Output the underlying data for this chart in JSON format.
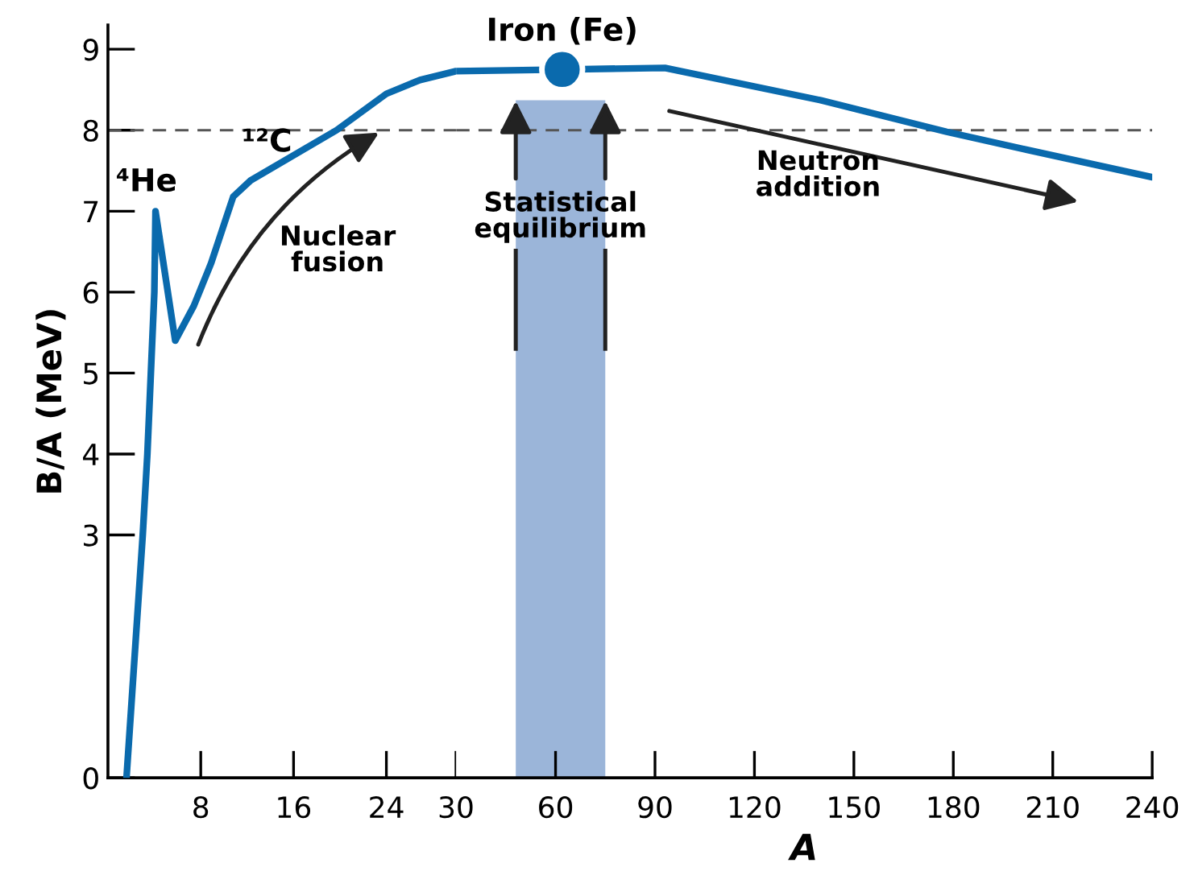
{
  "chart_data": [
    {
      "type": "line",
      "ylabel": "B/A (MeV)",
      "series": [
        {
          "color": "#0a6aad",
          "x": [
            1.6,
            3.0,
            3.4,
            3.7,
            4.0,
            4.1,
            5.8,
            7.4,
            8.9,
            10.8,
            12.3,
            19.7,
            24,
            26.9,
            30
          ],
          "values": [
            0,
            3,
            4,
            5,
            6,
            7,
            5.4,
            5.83,
            6.36,
            7.18,
            7.38,
            8.0,
            8.45,
            8.62,
            8.73
          ]
        }
      ],
      "xlim": [
        0,
        30
      ],
      "xticks": [
        8,
        16,
        24,
        30
      ],
      "ylim": [
        0,
        9.3
      ],
      "yticks": [
        0,
        3,
        4,
        5,
        6,
        7,
        8,
        9
      ],
      "ref_lines": [
        {
          "axis": "y",
          "value": 8,
          "color": "#555555",
          "line_style": "dashed"
        }
      ],
      "annotations": [
        {
          "text": "⁴He",
          "x": 4.1,
          "y": 7
        },
        {
          "text": "¹²C",
          "x": 12.3,
          "y": 7.38
        },
        "Nuclear\nfusion"
      ]
    },
    {
      "type": "line",
      "xlabel": "A",
      "series": [
        {
          "color": "#0a6aad",
          "x": [
            30,
            62,
            93,
            140,
            178,
            202,
            240
          ],
          "values": [
            8.73,
            8.75,
            8.77,
            8.37,
            7.98,
            7.76,
            7.42
          ]
        },
        {
          "type": "scatter",
          "color": "#0a6aad",
          "marker": "circle",
          "x": [
            62
          ],
          "values": [
            8.75
          ]
        }
      ],
      "xlim": [
        30,
        240
      ],
      "xticks": [
        60,
        90,
        120,
        150,
        180,
        210,
        240
      ],
      "ylim": [
        0,
        9.3
      ],
      "tick_labels": "x",
      "ref_lines": [
        {
          "axis": "y",
          "value": 8,
          "color": "#555555",
          "line_style": "dashed"
        }
      ],
      "bands": [
        {
          "axis": "x",
          "from": 48,
          "to": 75,
          "label": "Statistical\nequilibrium",
          "color": "#9bb5d9"
        }
      ],
      "annotations": [
        {
          "text": "Iron (Fe)",
          "x": 62,
          "y": 8.75
        },
        "Neutron\naddition"
      ]
    }
  ]
}
